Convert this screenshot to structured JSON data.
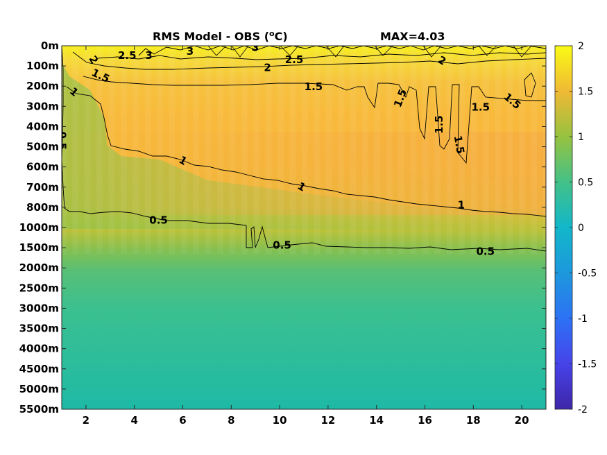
{
  "chart_data": {
    "type": "heatmap",
    "title": "RMS Model - OBS (",
    "title_unit_sup": "o",
    "title_unit": "C)",
    "max_label": "MAX=4.03",
    "x_ticks": [
      2,
      4,
      6,
      8,
      10,
      12,
      14,
      16,
      18,
      20
    ],
    "xlim": [
      1,
      21
    ],
    "y_ticks": [
      "0m",
      "100m",
      "200m",
      "300m",
      "400m",
      "500m",
      "600m",
      "700m",
      "800m",
      "1000m",
      "1500m",
      "2000m",
      "2500m",
      "3000m",
      "3500m",
      "4000m",
      "4500m",
      "5000m",
      "5500m"
    ],
    "colorbar": {
      "ticks": [
        "2",
        "1.5",
        "1",
        "0.5",
        "0",
        "-0.5",
        "-1",
        "-1.5",
        "-2"
      ],
      "range": [
        -2,
        2
      ],
      "colormap": "parula"
    },
    "contour_labels": [
      {
        "text": "2",
        "x": 2.3,
        "y": 0.7,
        "rot": 60
      },
      {
        "text": "2.5",
        "x": 3.7,
        "y": 0.5,
        "rot": 0
      },
      {
        "text": "3",
        "x": 4.6,
        "y": 0.5,
        "rot": 0
      },
      {
        "text": "3",
        "x": 6.3,
        "y": 0.3,
        "rot": 0
      },
      {
        "text": "3",
        "x": 9.0,
        "y": 0.1,
        "rot": 10
      },
      {
        "text": "2.5",
        "x": 10.6,
        "y": 0.7,
        "rot": 0
      },
      {
        "text": "2",
        "x": 9.5,
        "y": 1.1,
        "rot": 0
      },
      {
        "text": "2",
        "x": 16.7,
        "y": 0.75,
        "rot": 30
      },
      {
        "text": "1.5",
        "x": 2.6,
        "y": 1.5,
        "rot": 25
      },
      {
        "text": "1.5",
        "x": 11.4,
        "y": 2.05,
        "rot": 0
      },
      {
        "text": "1.5",
        "x": 15.0,
        "y": 2.6,
        "rot": -70
      },
      {
        "text": "1.5",
        "x": 16.6,
        "y": 3.9,
        "rot": -90
      },
      {
        "text": "1.5",
        "x": 17.4,
        "y": 4.9,
        "rot": 80
      },
      {
        "text": "1.5",
        "x": 18.3,
        "y": 3.05,
        "rot": 0
      },
      {
        "text": "1.5",
        "x": 19.6,
        "y": 2.75,
        "rot": 40
      },
      {
        "text": "1",
        "x": 1.5,
        "y": 2.3,
        "rot": 40
      },
      {
        "text": "1",
        "x": 6.0,
        "y": 5.7,
        "rot": 30
      },
      {
        "text": "1",
        "x": 10.9,
        "y": 7.0,
        "rot": 30
      },
      {
        "text": "1",
        "x": 17.5,
        "y": 7.9,
        "rot": 0
      },
      {
        "text": "0.5",
        "x": 1.0,
        "y": 4.7,
        "rot": 90
      },
      {
        "text": "0.5",
        "x": 5.0,
        "y": 8.65,
        "rot": 0
      },
      {
        "text": "0.5",
        "x": 10.1,
        "y": 9.9,
        "rot": 0
      },
      {
        "text": "0.5",
        "x": 18.5,
        "y": 10.2,
        "rot": 0
      }
    ]
  }
}
